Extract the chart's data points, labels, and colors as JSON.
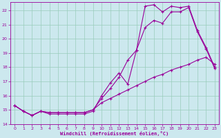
{
  "bg_color": "#cce8ee",
  "line_color": "#990099",
  "grid_color": "#99ccbb",
  "xlim": [
    -0.5,
    23.5
  ],
  "ylim": [
    14,
    22.6
  ],
  "yticks": [
    14,
    15,
    16,
    17,
    18,
    19,
    20,
    21,
    22
  ],
  "xticks": [
    0,
    1,
    2,
    3,
    4,
    5,
    6,
    7,
    8,
    9,
    10,
    11,
    12,
    13,
    14,
    15,
    16,
    17,
    18,
    19,
    20,
    21,
    22,
    23
  ],
  "line1_x": [
    0,
    1,
    2,
    3,
    4,
    5,
    6,
    7,
    8,
    9,
    10,
    11,
    12,
    13,
    14,
    15,
    16,
    17,
    18,
    19,
    20,
    21,
    22,
    23
  ],
  "line1_y": [
    15.3,
    14.9,
    14.6,
    14.9,
    14.7,
    14.7,
    14.7,
    14.7,
    14.7,
    14.9,
    16.0,
    16.9,
    17.6,
    16.8,
    19.2,
    22.3,
    22.4,
    21.9,
    22.3,
    22.2,
    22.3,
    20.6,
    19.4,
    18.0
  ],
  "line2_x": [
    0,
    1,
    2,
    3,
    4,
    5,
    6,
    7,
    8,
    9,
    10,
    11,
    12,
    13,
    14,
    15,
    16,
    17,
    18,
    19,
    20,
    21,
    22,
    23
  ],
  "line2_y": [
    15.3,
    14.9,
    14.6,
    14.9,
    14.8,
    14.8,
    14.8,
    14.8,
    14.8,
    15.0,
    15.8,
    16.5,
    17.3,
    18.5,
    19.2,
    20.8,
    21.3,
    21.1,
    21.9,
    21.9,
    22.2,
    20.5,
    19.3,
    17.9
  ],
  "line3_x": [
    0,
    1,
    2,
    3,
    4,
    5,
    6,
    7,
    8,
    9,
    10,
    11,
    12,
    13,
    14,
    15,
    16,
    17,
    18,
    19,
    20,
    21,
    22,
    23
  ],
  "line3_y": [
    15.3,
    14.9,
    14.6,
    14.9,
    14.8,
    14.8,
    14.8,
    14.8,
    14.8,
    15.0,
    15.5,
    15.8,
    16.1,
    16.4,
    16.7,
    17.0,
    17.3,
    17.5,
    17.8,
    18.0,
    18.2,
    18.5,
    18.7,
    18.2
  ],
  "xlabel": "Windchill (Refroidissement éolien,°C)",
  "marker": "+",
  "markersize": 3,
  "linewidth": 0.8
}
